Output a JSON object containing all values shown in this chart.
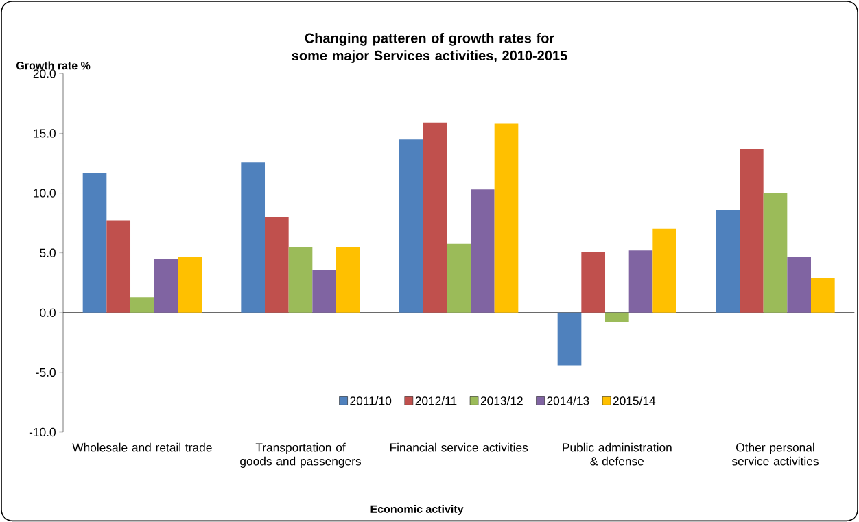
{
  "chart_data": {
    "type": "bar",
    "title": "Changing patteren of growth rates for some major Services activities, 2010-2015",
    "ylabel": "Growth rate %",
    "xlabel": "Economic activity",
    "categories": [
      "Wholesale and retail trade",
      "Transportation of goods and passengers",
      "Financial service activities",
      "Public administration & defense",
      "Other personal service activities"
    ],
    "series": [
      {
        "name": "2011/10",
        "color": "#4f81bd",
        "values": [
          11.7,
          12.6,
          14.5,
          -4.4,
          8.6
        ]
      },
      {
        "name": "2012/11",
        "color": "#c0504d",
        "values": [
          7.7,
          8.0,
          15.9,
          5.1,
          13.7
        ]
      },
      {
        "name": "2013/12",
        "color": "#9bbb59",
        "values": [
          1.3,
          5.5,
          5.8,
          -0.8,
          10.0
        ]
      },
      {
        "name": "2014/13",
        "color": "#8064a2",
        "values": [
          4.5,
          3.6,
          10.3,
          5.2,
          4.7
        ]
      },
      {
        "name": "2015/14",
        "color": "#ffc000",
        "values": [
          4.7,
          5.5,
          15.8,
          7.0,
          2.9
        ]
      }
    ],
    "ylim": [
      -10,
      20
    ],
    "yticks": [
      {
        "value": -10,
        "label": "-10.0"
      },
      {
        "value": -5,
        "label": "-5.0"
      },
      {
        "value": 0,
        "label": "0.0"
      },
      {
        "value": 5,
        "label": "5.0"
      },
      {
        "value": 10,
        "label": "10.0"
      },
      {
        "value": 15,
        "label": "15.0"
      },
      {
        "value": 20,
        "label": "20.0"
      }
    ],
    "legend": "bottom"
  }
}
